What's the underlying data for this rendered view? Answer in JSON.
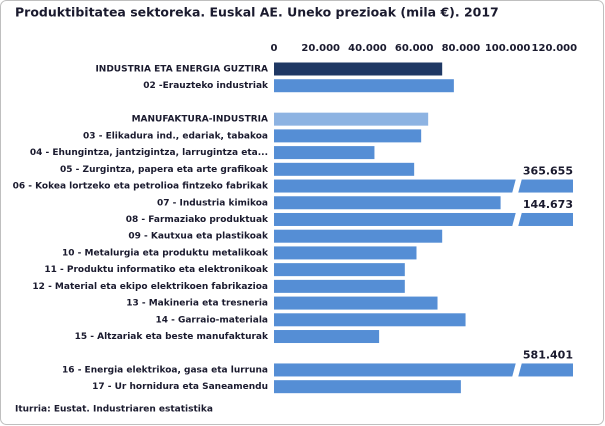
{
  "chart_data": {
    "type": "hbar",
    "title": "Produktibitatea sektoreka. Euskal AE. Uneko prezioak (mila €).  2017",
    "source": "Iturria: Eustat. Industriaren estatistika",
    "categories": [
      "INDUSTRIA ETA ENERGIA GUZTIRA",
      "02 -Erauzteko industriak",
      null,
      "MANUFAKTURA-INDUSTRIA",
      "03 - Elikadura ind., edariak, tabakoa",
      "04 - Ehungintza, jantzigintza, larrugintza eta...",
      "05 - Zurgintza, papera eta arte grafikoak",
      "06 - Kokea lortzeko eta petrolioa fintzeko fabrikak",
      "07 - Industria kimikoa",
      "08 - Farmaziako produktuak",
      "09 - Kautxua eta plastikoak",
      "10 - Metalurgia eta produktu metalikoak",
      "11 - Produktu informatiko eta elektronikoak",
      "12 - Material eta ekipo elektrikoen fabrikazioa",
      "13 - Makineria eta tresneria",
      "14 - Garraio-materiala",
      "15 - Altzariak eta beste manufakturak",
      null,
      "16 - Energia elektrikoa, gasa eta lurruna",
      "17 - Ur hornidura eta Saneamendu"
    ],
    "values": [
      72000,
      77000,
      null,
      66000,
      63000,
      43000,
      60000,
      365655,
      97000,
      144673,
      72000,
      61000,
      56000,
      56000,
      70000,
      82000,
      45000,
      null,
      581401,
      80000
    ],
    "value_labels": [
      null,
      null,
      null,
      null,
      null,
      null,
      null,
      "365.655",
      null,
      "144.673",
      null,
      null,
      null,
      null,
      null,
      null,
      null,
      null,
      "581.401",
      null
    ],
    "colors": [
      "#1f3864",
      "#558ed5",
      null,
      "#8db3e2",
      "#558ed5",
      "#558ed5",
      "#558ed5",
      "#558ed5",
      "#558ed5",
      "#558ed5",
      "#558ed5",
      "#558ed5",
      "#558ed5",
      "#558ed5",
      "#558ed5",
      "#558ed5",
      "#558ed5",
      null,
      "#558ed5",
      "#558ed5"
    ],
    "xlim": [
      0,
      128000
    ],
    "xticks": [
      0,
      {
        "value": 20000,
        "label": "20.000"
      },
      {
        "value": 40000,
        "label": "40.000"
      },
      {
        "value": 60000,
        "label": "60.000"
      },
      {
        "value": 80000,
        "label": "80.000"
      },
      {
        "value": 100000,
        "label": "100.000"
      },
      {
        "value": 120000,
        "label": "120.000"
      }
    ],
    "grid": false
  }
}
